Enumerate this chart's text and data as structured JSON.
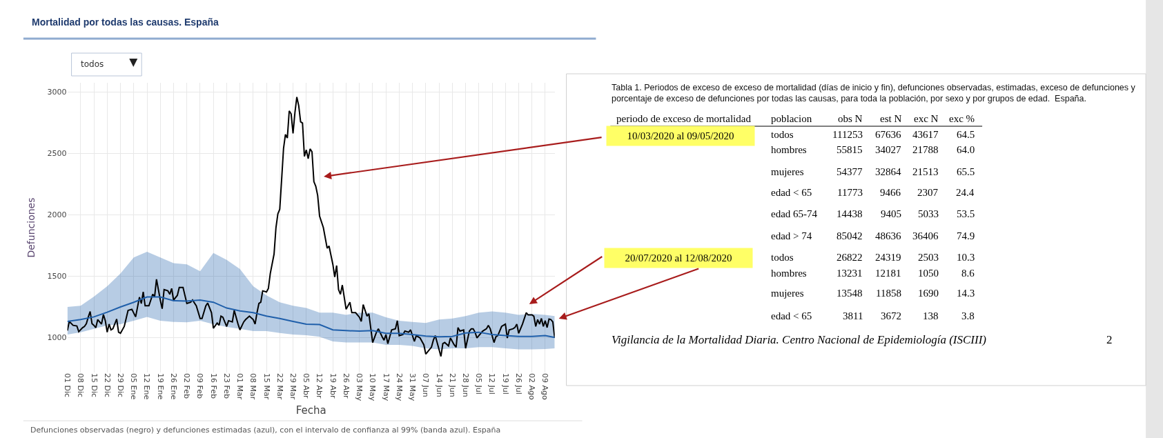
{
  "chart_data": [
    {
      "type": "line",
      "title": "Mortalidad por todas las causas. España",
      "xlabel": "Fecha",
      "ylabel": "Defunciones",
      "xlim": [
        "2019-12-01",
        "2020-08-14"
      ],
      "ylim": [
        715,
        3075
      ],
      "xticks": [
        {
          "value": "2019-12-01",
          "label": "01 Dic"
        },
        {
          "value": "2019-12-08",
          "label": "08 Dic"
        },
        {
          "value": "2019-12-15",
          "label": "15 Dic"
        },
        {
          "value": "2019-12-22",
          "label": "22 Dic"
        },
        {
          "value": "2019-12-29",
          "label": "29 Dic"
        },
        {
          "value": "2020-01-05",
          "label": "05 Ene"
        },
        {
          "value": "2020-01-12",
          "label": "12 Ene"
        },
        {
          "value": "2020-01-19",
          "label": "19 Ene"
        },
        {
          "value": "2020-01-26",
          "label": "26 Ene"
        },
        {
          "value": "2020-02-02",
          "label": "02 Feb"
        },
        {
          "value": "2020-02-09",
          "label": "09 Feb"
        },
        {
          "value": "2020-02-16",
          "label": "16 Feb"
        },
        {
          "value": "2020-02-23",
          "label": "23 Feb"
        },
        {
          "value": "2020-03-01",
          "label": "01 Mar"
        },
        {
          "value": "2020-03-08",
          "label": "08 Mar"
        },
        {
          "value": "2020-03-15",
          "label": "15 Mar"
        },
        {
          "value": "2020-03-22",
          "label": "22 Mar"
        },
        {
          "value": "2020-03-29",
          "label": "29 Mar"
        },
        {
          "value": "2020-04-05",
          "label": "05 Abr"
        },
        {
          "value": "2020-04-12",
          "label": "12 Abr"
        },
        {
          "value": "2020-04-19",
          "label": "19 Abr"
        },
        {
          "value": "2020-04-26",
          "label": "26 Abr"
        },
        {
          "value": "2020-05-03",
          "label": "03 May"
        },
        {
          "value": "2020-05-10",
          "label": "10 May"
        },
        {
          "value": "2020-05-17",
          "label": "17 May"
        },
        {
          "value": "2020-05-24",
          "label": "24 May"
        },
        {
          "value": "2020-05-31",
          "label": "31 May"
        },
        {
          "value": "2020-06-07",
          "label": "07 Jun"
        },
        {
          "value": "2020-06-14",
          "label": "14 Jun"
        },
        {
          "value": "2020-06-21",
          "label": "21 Jun"
        },
        {
          "value": "2020-06-28",
          "label": "28 Jun"
        },
        {
          "value": "2020-07-05",
          "label": "05 Jul"
        },
        {
          "value": "2020-07-12",
          "label": "12 Jul"
        },
        {
          "value": "2020-07-19",
          "label": "19 Jul"
        },
        {
          "value": "2020-07-26",
          "label": "26 Jul"
        },
        {
          "value": "2020-08-02",
          "label": "02 Ago"
        },
        {
          "value": "2020-08-09",
          "label": "09 Ago"
        }
      ],
      "yticks": [
        1000,
        1500,
        2000,
        2500,
        3000
      ],
      "grid": true,
      "marker": "none",
      "line_style": "solid",
      "series": [
        {
          "color": "#000000",
          "x": [
            "2019-12-01",
            "2019-12-02",
            "2019-12-04",
            "2019-12-06",
            "2019-12-07",
            "2019-12-09",
            "2019-12-10",
            "2019-12-11",
            "2019-12-12",
            "2019-12-13",
            "2019-12-14",
            "2019-12-15",
            "2019-12-16",
            "2019-12-17",
            "2019-12-19",
            "2019-12-20",
            "2019-12-21",
            "2019-12-22",
            "2019-12-23",
            "2019-12-24",
            "2019-12-25",
            "2019-12-27",
            "2019-12-28",
            "2019-12-29",
            "2019-12-31",
            "2020-01-02",
            "2020-01-04",
            "2020-01-06",
            "2020-01-08",
            "2020-01-09",
            "2020-01-10",
            "2020-01-11",
            "2020-01-13",
            "2020-01-15",
            "2020-01-16",
            "2020-01-17",
            "2020-01-19",
            "2020-01-20",
            "2020-01-21",
            "2020-01-23",
            "2020-01-24",
            "2020-01-25",
            "2020-01-26",
            "2020-01-28",
            "2020-01-29",
            "2020-01-31",
            "2020-02-02",
            "2020-02-04",
            "2020-02-05",
            "2020-02-07",
            "2020-02-09",
            "2020-02-10",
            "2020-02-12",
            "2020-02-13",
            "2020-02-15",
            "2020-02-16",
            "2020-02-18",
            "2020-02-19",
            "2020-02-20",
            "2020-02-21",
            "2020-02-23",
            "2020-02-24",
            "2020-02-26",
            "2020-02-27",
            "2020-02-29",
            "2020-03-01",
            "2020-03-03",
            "2020-03-04",
            "2020-03-06",
            "2020-03-08",
            "2020-03-09",
            "2020-03-10",
            "2020-03-11",
            "2020-03-12",
            "2020-03-13",
            "2020-03-15",
            "2020-03-16",
            "2020-03-17",
            "2020-03-19",
            "2020-03-20",
            "2020-03-21",
            "2020-03-22",
            "2020-03-23",
            "2020-03-24",
            "2020-03-25",
            "2020-03-26",
            "2020-03-27",
            "2020-03-28",
            "2020-03-29",
            "2020-03-30",
            "2020-03-31",
            "2020-04-01",
            "2020-04-02",
            "2020-04-03",
            "2020-04-04",
            "2020-04-05",
            "2020-04-06",
            "2020-04-07",
            "2020-04-08",
            "2020-04-09",
            "2020-04-10",
            "2020-04-11",
            "2020-04-12",
            "2020-04-14",
            "2020-04-16",
            "2020-04-17",
            "2020-04-19",
            "2020-04-20",
            "2020-04-21",
            "2020-04-22",
            "2020-04-23",
            "2020-04-24",
            "2020-04-26",
            "2020-04-28",
            "2020-04-29",
            "2020-05-01",
            "2020-05-03",
            "2020-05-04",
            "2020-05-05",
            "2020-05-07",
            "2020-05-08",
            "2020-05-10",
            "2020-05-12",
            "2020-05-13",
            "2020-05-15",
            "2020-05-16",
            "2020-05-17",
            "2020-05-18",
            "2020-05-20",
            "2020-05-22",
            "2020-05-23",
            "2020-05-24",
            "2020-05-26",
            "2020-05-27",
            "2020-05-29",
            "2020-05-30",
            "2020-06-01",
            "2020-06-02",
            "2020-06-04",
            "2020-06-06",
            "2020-06-07",
            "2020-06-10",
            "2020-06-11",
            "2020-06-12",
            "2020-06-13",
            "2020-06-15",
            "2020-06-16",
            "2020-06-17",
            "2020-06-19",
            "2020-06-20",
            "2020-06-22",
            "2020-06-23",
            "2020-06-24",
            "2020-06-25",
            "2020-06-27",
            "2020-06-28",
            "2020-06-30",
            "2020-07-01",
            "2020-07-02",
            "2020-07-03",
            "2020-07-04",
            "2020-07-05",
            "2020-07-07",
            "2020-07-09",
            "2020-07-10",
            "2020-07-11",
            "2020-07-13",
            "2020-07-14",
            "2020-07-15",
            "2020-07-17",
            "2020-07-19",
            "2020-07-20",
            "2020-07-21",
            "2020-07-23",
            "2020-07-24",
            "2020-07-25",
            "2020-07-26",
            "2020-07-28",
            "2020-07-30",
            "2020-07-31",
            "2020-08-02",
            "2020-08-03",
            "2020-08-04",
            "2020-08-05",
            "2020-08-06",
            "2020-08-07",
            "2020-08-08",
            "2020-08-09",
            "2020-08-10",
            "2020-08-11",
            "2020-08-12",
            "2020-08-13",
            "2020-08-14"
          ],
          "values": [
            1056,
            1131,
            1099,
            1094,
            1047,
            1080,
            1090,
            1112,
            1165,
            1212,
            1112,
            1099,
            1080,
            1146,
            1109,
            1187,
            1137,
            1043,
            1109,
            1062,
            1071,
            1150,
            1043,
            1034,
            1090,
            1221,
            1230,
            1168,
            1328,
            1277,
            1371,
            1258,
            1258,
            1352,
            1333,
            1474,
            1305,
            1234,
            1390,
            1380,
            1352,
            1399,
            1305,
            1343,
            1408,
            1408,
            1277,
            1287,
            1305,
            1258,
            1155,
            1155,
            1258,
            1281,
            1202,
            1075,
            1118,
            1099,
            1174,
            1165,
            1090,
            1137,
            1127,
            1221,
            1109,
            1062,
            1127,
            1146,
            1174,
            1146,
            1109,
            1202,
            1277,
            1287,
            1380,
            1371,
            1399,
            1521,
            1680,
            1895,
            2007,
            2045,
            2288,
            2541,
            2654,
            2625,
            2846,
            2822,
            2663,
            2831,
            2959,
            2888,
            2757,
            2747,
            2476,
            2528,
            2457,
            2536,
            2513,
            2270,
            2232,
            2157,
            1989,
            1895,
            1727,
            1745,
            1596,
            1493,
            1586,
            1390,
            1352,
            1427,
            1230,
            1287,
            1202,
            1202,
            1165,
            1131,
            1268,
            1174,
            1193,
            959,
            1043,
            1071,
            1006,
            978,
            1024,
            950,
            1062,
            1071,
            1137,
            1015,
            1024,
            1052,
            1043,
            1062,
            968,
            1015,
            996,
            940,
            865,
            921,
            978,
            1015,
            959,
            846,
            950,
            959,
            931,
            996,
            940,
            921,
            1081,
            1052,
            1062,
            912,
            1052,
            1071,
            1071,
            1043,
            996,
            1015,
            1052,
            1071,
            1099,
            1071,
            959,
            1006,
            1015,
            1090,
            1109,
            996,
            1062,
            1071,
            1081,
            1109,
            1034,
            1109,
            1202,
            1184,
            1184,
            1174,
            1090,
            1146,
            1109,
            1155,
            1090,
            1137,
            1081,
            1150,
            1146,
            1127,
            996
          ]
        },
        {
          "color": "#1f5faa",
          "x": [
            "2019-12-01",
            "2019-12-08",
            "2019-12-15",
            "2019-12-22",
            "2019-12-29",
            "2020-01-05",
            "2020-01-12",
            "2020-01-19",
            "2020-01-26",
            "2020-02-02",
            "2020-02-09",
            "2020-02-16",
            "2020-02-23",
            "2020-03-01",
            "2020-03-08",
            "2020-03-15",
            "2020-03-22",
            "2020-03-29",
            "2020-04-05",
            "2020-04-12",
            "2020-04-19",
            "2020-04-26",
            "2020-05-03",
            "2020-05-10",
            "2020-05-17",
            "2020-05-24",
            "2020-05-31",
            "2020-06-07",
            "2020-06-14",
            "2020-06-21",
            "2020-06-28",
            "2020-07-05",
            "2020-07-12",
            "2020-07-19",
            "2020-07-26",
            "2020-08-02",
            "2020-08-09",
            "2020-08-14"
          ],
          "values": [
            1131,
            1146,
            1168,
            1206,
            1249,
            1287,
            1330,
            1330,
            1300,
            1296,
            1305,
            1287,
            1240,
            1217,
            1202,
            1174,
            1155,
            1131,
            1109,
            1105,
            1062,
            1056,
            1052,
            1056,
            1034,
            1034,
            1024,
            1011,
            1006,
            1009,
            1037,
            1043,
            1024,
            1015,
            1009,
            1009,
            1015,
            1000
          ],
          "upper": [
            1249,
            1258,
            1333,
            1418,
            1521,
            1652,
            1699,
            1652,
            1605,
            1596,
            1539,
            1689,
            1633,
            1558,
            1418,
            1343,
            1287,
            1258,
            1240,
            1202,
            1202,
            1184,
            1202,
            1202,
            1165,
            1137,
            1127,
            1118,
            1146,
            1155,
            1174,
            1202,
            1212,
            1202,
            1184,
            1193,
            1184,
            1174
          ],
          "lower": [
            1024,
            1043,
            1071,
            1099,
            1109,
            1137,
            1168,
            1137,
            1127,
            1124,
            1137,
            1109,
            1086,
            1071,
            1052,
            1052,
            1037,
            1024,
            1019,
            1006,
            968,
            959,
            959,
            959,
            940,
            940,
            931,
            912,
            903,
            912,
            912,
            921,
            921,
            912,
            903,
            903,
            906,
            912
          ]
        }
      ],
      "annotations": [
        "todos",
        "Defunciones observadas (negro) y defunciones estimadas (azul), con el intervalo de confianza al 99% (banda azul). España"
      ]
    },
    {
      "type": "other",
      "title": "Tabla 1. Periodos de exceso de exceso de mortalidad (días de inicio y fin), defunciones observadas, estimadas, exceso de defunciones y porcentaje de exceso de defunciones por todas las causas, para toda la población, por sexo y por grupos de edad.  España.",
      "categories": [
        "obs N",
        "est N",
        "exc N",
        "exc %"
      ],
      "y_categories": [
        "todos",
        "hombres",
        "mujeres",
        "edad < 65",
        "edad 65-74",
        "edad > 74",
        "todos",
        "hombres",
        "mujeres",
        "edad < 65"
      ],
      "annotations": [
        "periodo de exceso de mortalidad",
        "poblacion",
        "10/03/2020 al 09/05/2020",
        "20/07/2020 al 12/08/2020",
        "111253",
        "67636",
        "43617",
        "64.5",
        "55815",
        "34027",
        "21788",
        "64.0",
        "54377",
        "32864",
        "21513",
        "65.5",
        "11773",
        "9466",
        "2307",
        "24.4",
        "14438",
        "9405",
        "5033",
        "53.5",
        "85042",
        "48636",
        "36406",
        "74.9",
        "26822",
        "24319",
        "2503",
        "10.3",
        "13231",
        "12181",
        "1050",
        "8.6",
        "13548",
        "11858",
        "1690",
        "14.3",
        "3811",
        "3672",
        "138",
        "3.8",
        "Vigilancia de la Mortalidad Diaria. Centro Nacional de Epidemiología (ISCIII)",
        "2"
      ]
    }
  ]
}
